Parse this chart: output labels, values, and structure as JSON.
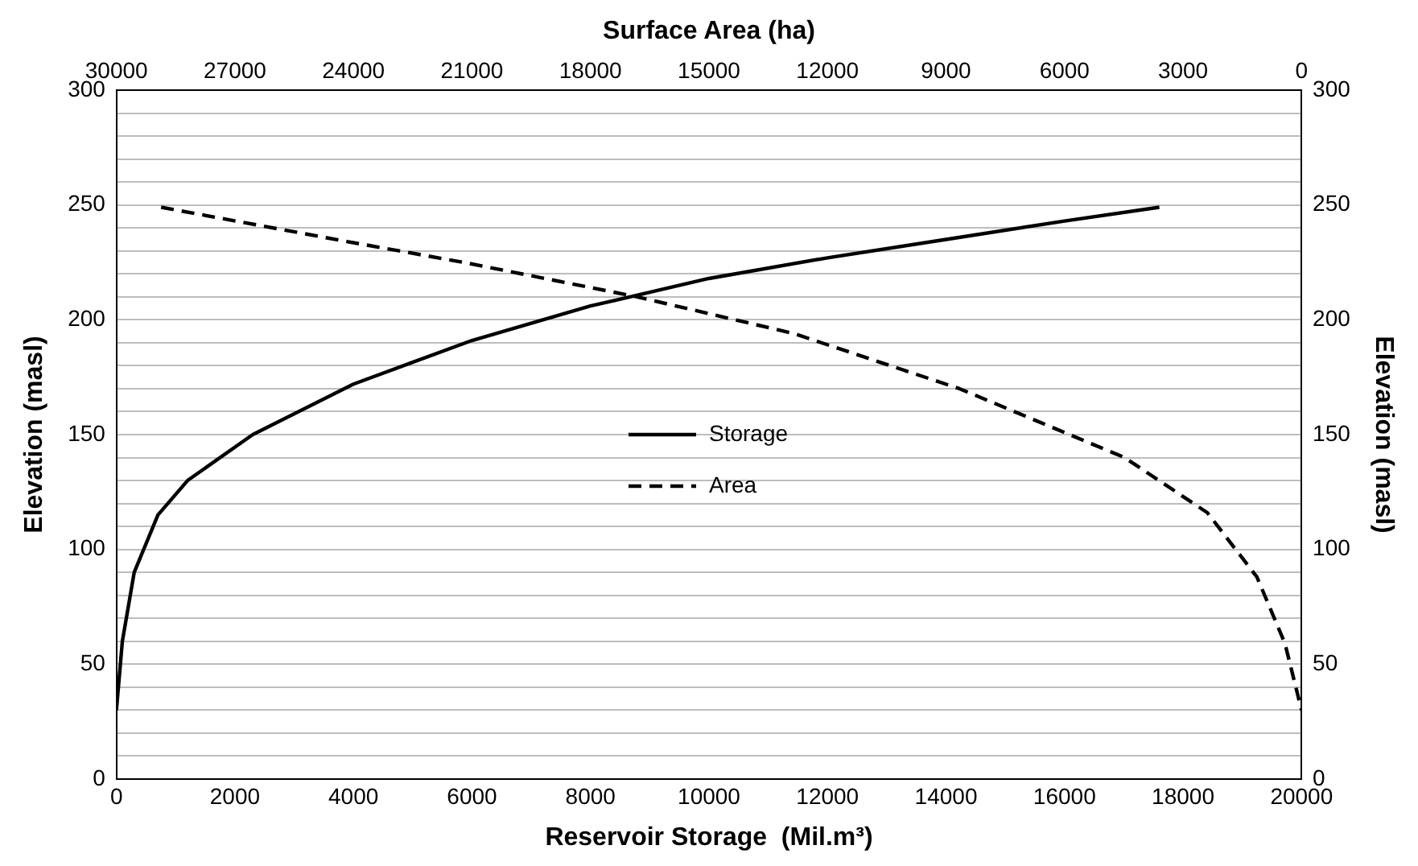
{
  "chart_data": {
    "type": "line",
    "xlabel": "Reservoir Storage  (Mil.m³)",
    "x2label": "Surface Area (ha)",
    "ylabel": "Elevation (masl)",
    "y2label": "Elevation (masl)",
    "xlim": [
      0,
      20000
    ],
    "xticks": [
      0,
      2000,
      4000,
      6000,
      8000,
      10000,
      12000,
      14000,
      16000,
      18000,
      20000
    ],
    "x2lim": [
      30000,
      0
    ],
    "x2ticks": [
      30000,
      27000,
      24000,
      21000,
      18000,
      15000,
      12000,
      9000,
      6000,
      3000,
      0
    ],
    "ylim": [
      0,
      300
    ],
    "yticks": [
      0,
      {
        "value": 10,
        "label": null
      },
      {
        "value": 20,
        "label": null
      },
      {
        "value": 30,
        "label": null
      },
      {
        "value": 40,
        "label": null
      },
      50,
      {
        "value": 60,
        "label": null
      },
      {
        "value": 70,
        "label": null
      },
      {
        "value": 80,
        "label": null
      },
      {
        "value": 90,
        "label": null
      },
      100,
      {
        "value": 110,
        "label": null
      },
      {
        "value": 120,
        "label": null
      },
      {
        "value": 130,
        "label": null
      },
      {
        "value": 140,
        "label": null
      },
      150,
      {
        "value": 160,
        "label": null
      },
      {
        "value": 170,
        "label": null
      },
      {
        "value": 180,
        "label": null
      },
      {
        "value": 190,
        "label": null
      },
      200,
      {
        "value": 210,
        "label": null
      },
      {
        "value": 220,
        "label": null
      },
      {
        "value": 230,
        "label": null
      },
      {
        "value": 240,
        "label": null
      },
      250,
      {
        "value": 260,
        "label": null
      },
      {
        "value": 270,
        "label": null
      },
      {
        "value": 280,
        "label": null
      },
      {
        "value": 290,
        "label": null
      },
      300
    ],
    "y2lim": [
      0,
      300
    ],
    "y2ticks": [
      0,
      50,
      100,
      150,
      200,
      250,
      300
    ],
    "grid": "y",
    "legend": "center",
    "marker": "none",
    "series": [
      {
        "name": "Storage",
        "color": "#000000",
        "line_style": "solid",
        "x": [
          0,
          100,
          300,
          700,
          1200,
          2300,
          4000,
          6000,
          8000,
          10000,
          12000,
          14000,
          16000,
          17600
        ],
        "values": [
          30,
          60,
          90,
          115,
          130,
          150,
          172,
          191,
          206,
          218,
          227,
          235,
          243,
          249
        ]
      },
      {
        "name": "Area",
        "color": "#000000",
        "line_style": "dashed",
        "axis": "x2",
        "x": [
          28870,
          24140,
          21210,
          16820,
          12850,
          8660,
          4480,
          2385,
          1130,
          420,
          0
        ],
        "values": [
          249,
          234,
          225,
          210,
          194,
          170,
          140,
          116,
          88,
          59,
          30
        ]
      }
    ]
  }
}
